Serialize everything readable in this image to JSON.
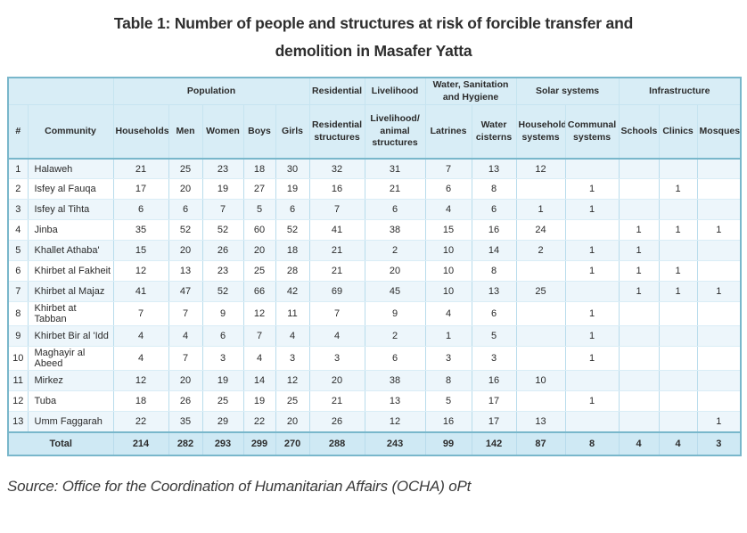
{
  "title": {
    "line1": "Table 1: Number of people and structures at risk of forcible transfer and",
    "line2": "demolition in Masafer Yatta"
  },
  "source": "Source: Office for the Coordination of Humanitarian Affairs (OCHA) oPt",
  "colors": {
    "border_strong": "#79b7cb",
    "border_light": "#b9dcec",
    "row_line": "#d9edf6",
    "header_bg": "#d8edf6",
    "stripe_bg": "#edf6fb",
    "total_bg": "#cfe9f4",
    "text": "#2b2b2b"
  },
  "table": {
    "groups": [
      {
        "label": "",
        "span": 2
      },
      {
        "label": "Population",
        "span": 5
      },
      {
        "label": "Residential",
        "span": 1
      },
      {
        "label": "Livelihood",
        "span": 1
      },
      {
        "label": "Water, Sanitation and Hygiene",
        "span": 2
      },
      {
        "label": "Solar systems",
        "span": 2
      },
      {
        "label": "Infrastructure",
        "span": 3
      }
    ],
    "columns": [
      "#",
      "Community",
      "Households",
      "Men",
      "Women",
      "Boys",
      "Girls",
      "Residential structures",
      "Livelihood/ animal structures",
      "Latrines",
      "Water cisterns",
      "Household systems",
      "Communal systems",
      "Schools",
      "Clinics",
      "Mosques"
    ],
    "rows": [
      {
        "num": "1",
        "community": "Halaweh",
        "values": [
          "21",
          "25",
          "23",
          "18",
          "30",
          "32",
          "31",
          "7",
          "13",
          "12",
          "",
          "",
          "",
          ""
        ]
      },
      {
        "num": "2",
        "community": "Isfey al Fauqa",
        "values": [
          "17",
          "20",
          "19",
          "27",
          "19",
          "16",
          "21",
          "6",
          "8",
          "",
          "1",
          "",
          "1",
          ""
        ]
      },
      {
        "num": "3",
        "community": "Isfey al Tihta",
        "values": [
          "6",
          "6",
          "7",
          "5",
          "6",
          "7",
          "6",
          "4",
          "6",
          "1",
          "1",
          "",
          "",
          ""
        ]
      },
      {
        "num": "4",
        "community": "Jinba",
        "values": [
          "35",
          "52",
          "52",
          "60",
          "52",
          "41",
          "38",
          "15",
          "16",
          "24",
          "",
          "1",
          "1",
          "1"
        ]
      },
      {
        "num": "5",
        "community": "Khallet Athaba'",
        "values": [
          "15",
          "20",
          "26",
          "20",
          "18",
          "21",
          "2",
          "10",
          "14",
          "2",
          "1",
          "1",
          "",
          ""
        ]
      },
      {
        "num": "6",
        "community": "Khirbet al Fakheit",
        "values": [
          "12",
          "13",
          "23",
          "25",
          "28",
          "21",
          "20",
          "10",
          "8",
          "",
          "1",
          "1",
          "1",
          ""
        ]
      },
      {
        "num": "7",
        "community": "Khirbet al Majaz",
        "values": [
          "41",
          "47",
          "52",
          "66",
          "42",
          "69",
          "45",
          "10",
          "13",
          "25",
          "",
          "1",
          "1",
          "1"
        ]
      },
      {
        "num": "8",
        "community": "Khirbet at Tabban",
        "values": [
          "7",
          "7",
          "9",
          "12",
          "11",
          "7",
          "9",
          "4",
          "6",
          "",
          "1",
          "",
          "",
          ""
        ]
      },
      {
        "num": "9",
        "community": "Khirbet Bir al 'Idd",
        "values": [
          "4",
          "4",
          "6",
          "7",
          "4",
          "4",
          "2",
          "1",
          "5",
          "",
          "1",
          "",
          "",
          ""
        ]
      },
      {
        "num": "10",
        "community": "Maghayir al Abeed",
        "values": [
          "4",
          "7",
          "3",
          "4",
          "3",
          "3",
          "6",
          "3",
          "3",
          "",
          "1",
          "",
          "",
          ""
        ]
      },
      {
        "num": "11",
        "community": "Mirkez",
        "values": [
          "12",
          "20",
          "19",
          "14",
          "12",
          "20",
          "38",
          "8",
          "16",
          "10",
          "",
          "",
          "",
          ""
        ]
      },
      {
        "num": "12",
        "community": "Tuba",
        "values": [
          "18",
          "26",
          "25",
          "19",
          "25",
          "21",
          "13",
          "5",
          "17",
          "",
          "1",
          "",
          "",
          ""
        ]
      },
      {
        "num": "13",
        "community": "Umm Faggarah",
        "values": [
          "22",
          "35",
          "29",
          "22",
          "20",
          "26",
          "12",
          "16",
          "17",
          "13",
          "",
          "",
          "",
          "1"
        ]
      }
    ],
    "total": {
      "label": "Total",
      "values": [
        "214",
        "282",
        "293",
        "299",
        "270",
        "288",
        "243",
        "99",
        "142",
        "87",
        "8",
        "4",
        "4",
        "3"
      ]
    }
  }
}
